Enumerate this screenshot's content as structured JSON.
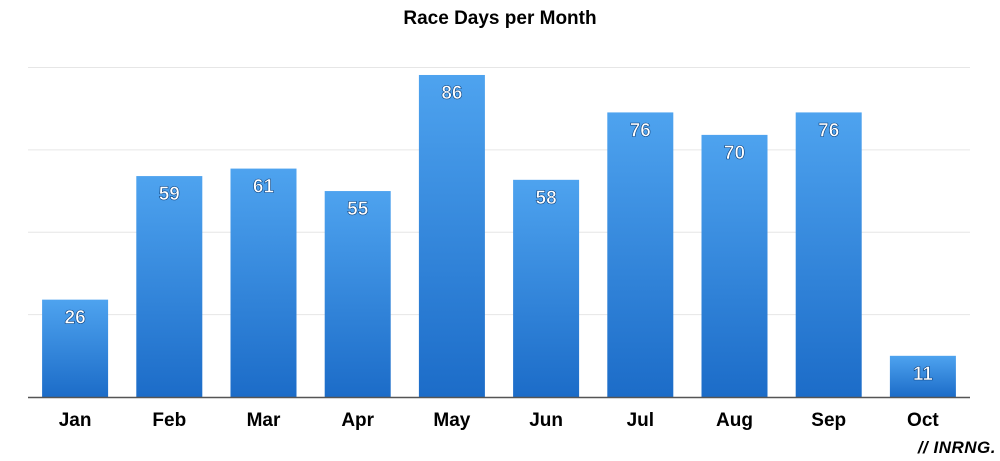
{
  "chart_data": {
    "type": "bar",
    "title": "Race Days per Month",
    "categories": [
      "Jan",
      "Feb",
      "Mar",
      "Apr",
      "May",
      "Jun",
      "Jul",
      "Aug",
      "Sep",
      "Oct"
    ],
    "values": [
      26,
      59,
      61,
      55,
      86,
      58,
      76,
      70,
      76,
      11
    ],
    "data_labels": [
      "26",
      "59",
      "61",
      "55",
      "86",
      "58",
      "76",
      "70",
      "76",
      "11"
    ],
    "xlabel": "",
    "ylabel": "",
    "ylim": [
      0,
      90
    ],
    "y_gridlines": [
      0,
      22,
      44,
      66,
      88
    ],
    "grid": true,
    "legend": "none",
    "colors": {
      "bar_top": "#4ea3ef",
      "bar_bottom": "#1c6cc8",
      "grid": "#e6e6e6",
      "axis": "#555555"
    }
  },
  "watermark": "// INRNG."
}
